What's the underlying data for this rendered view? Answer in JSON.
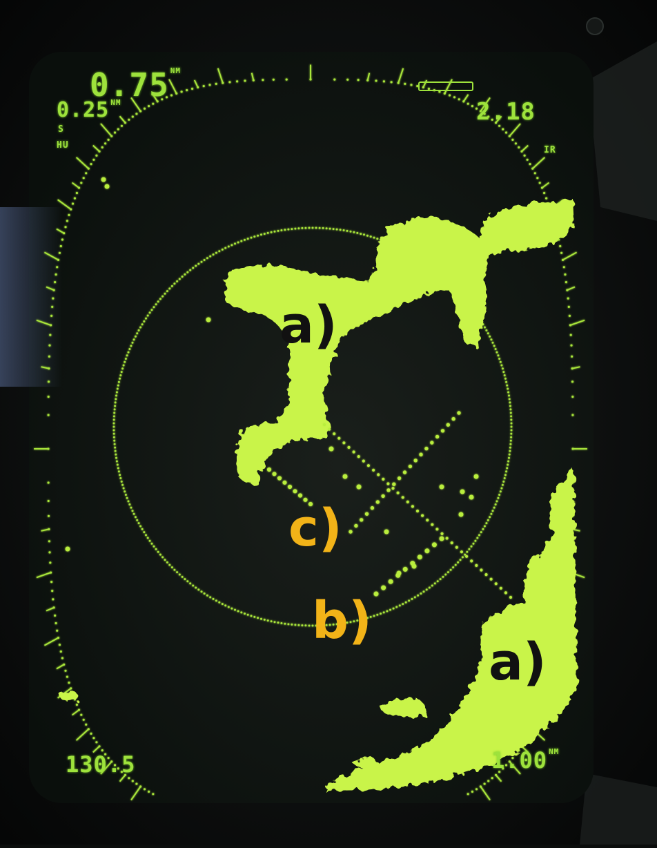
{
  "display": {
    "range_major": "0.75",
    "range_major_unit": "NM",
    "range_rings": "0.25",
    "range_rings_unit": "NM",
    "mode_s": "S",
    "mode_hu": "HU",
    "mode_ir": "IR",
    "top_right_value": "2.18",
    "bottom_left_value": "130.5",
    "bottom_right_value": "1.00",
    "bottom_right_unit": "NM"
  },
  "annotations": {
    "a_upper": "a)",
    "a_lower": "a)",
    "b": "b)",
    "c": "c)"
  },
  "colors": {
    "screen_bg": "#0d1410",
    "phosphor": "#c6f542",
    "hud_text": "#9ee23c",
    "label_black": "#111111",
    "label_orange": "#f2b318"
  }
}
